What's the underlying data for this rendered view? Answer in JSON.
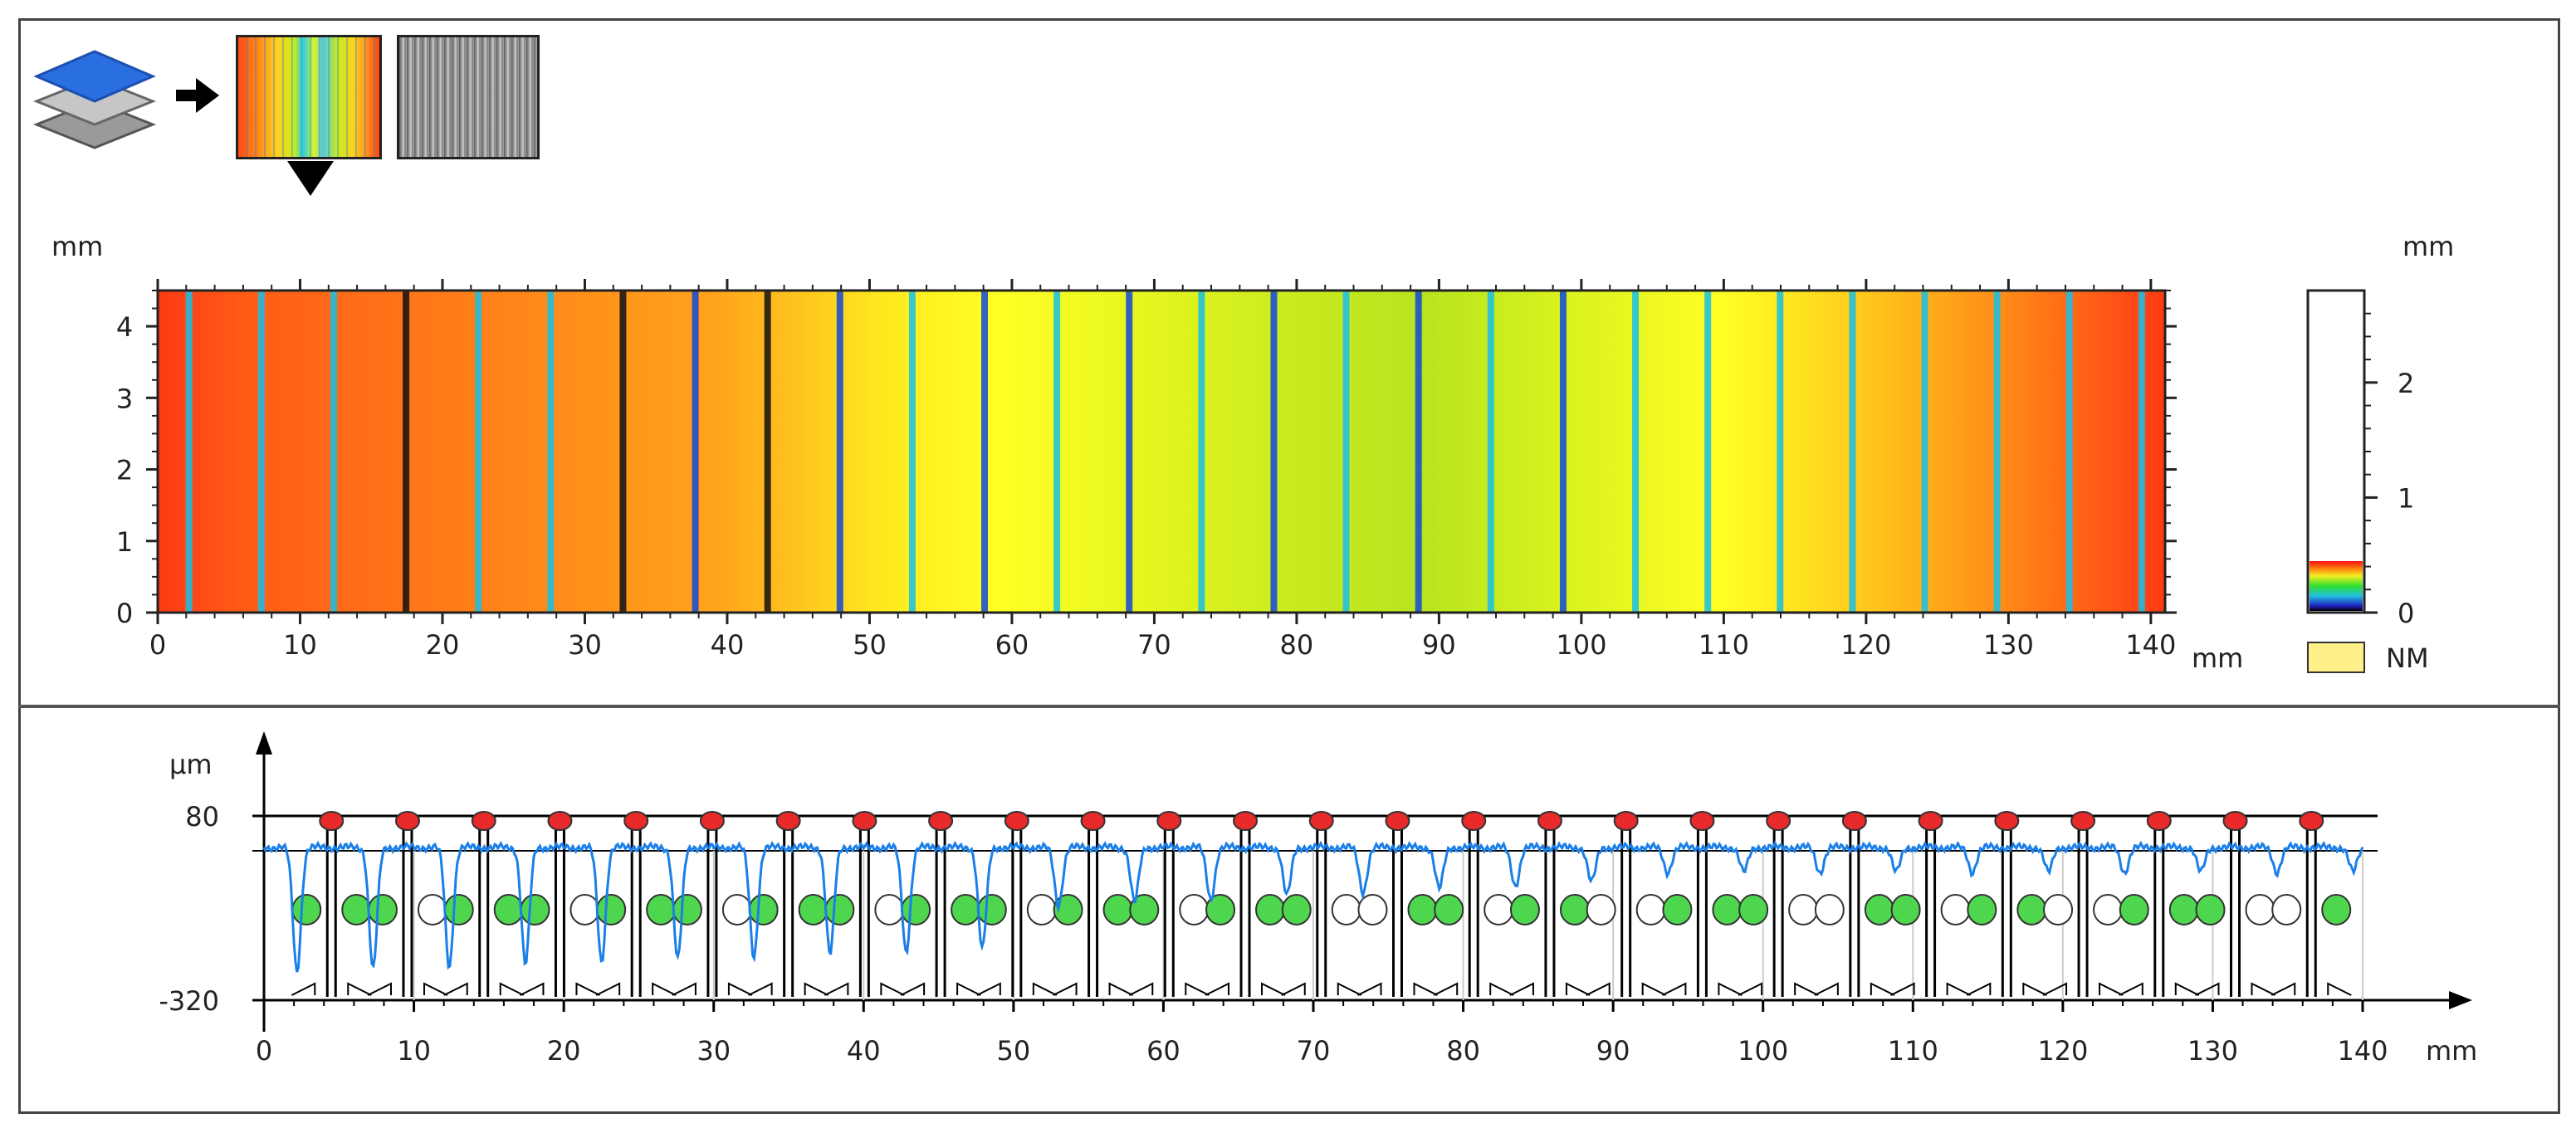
{
  "toolbar": {
    "layers_icon": "layers-icon",
    "arrow_icon": "arrow-right-icon",
    "selected_view": "color-height-map",
    "views": [
      "color-height-map",
      "grayscale-height-map"
    ]
  },
  "colors": {
    "height_stops": [
      "#ff3a14",
      "#ff7a18",
      "#ffb31c",
      "#ffe81e",
      "#ffff24",
      "#e2f51e",
      "#c8ea1e",
      "#9fdd1e"
    ],
    "stripe_cyan": "#17c0e6",
    "stripe_blue": "#1048d8",
    "stripe_black": "#101010",
    "profile_line": "#1a7fe8",
    "marker_red": "#e82a2a",
    "marker_green": "#4fd64f",
    "nm_swatch": "#fff08a"
  },
  "top_plot": {
    "y_unit": "mm",
    "y_ticks": [
      "0",
      "1",
      "2",
      "3",
      "4"
    ],
    "x_ticks": [
      "0",
      "10",
      "20",
      "30",
      "40",
      "50",
      "60",
      "70",
      "80",
      "90",
      "100",
      "110",
      "120",
      "130",
      "140"
    ],
    "x_unit": "mm",
    "x_max": 141,
    "y_max": 4.5
  },
  "colorbar": {
    "unit": "mm",
    "ticks": [
      "0",
      "1",
      "2"
    ],
    "max": 2.8,
    "nm_label": "NM"
  },
  "bottom_plot": {
    "y_unit": "μm",
    "y_ticks": [
      "80",
      "-320"
    ],
    "x_ticks": [
      "0",
      "10",
      "20",
      "30",
      "40",
      "50",
      "60",
      "70",
      "80",
      "90",
      "100",
      "110",
      "120",
      "130",
      "140"
    ],
    "x_unit": "mm",
    "x_max": 141
  }
}
